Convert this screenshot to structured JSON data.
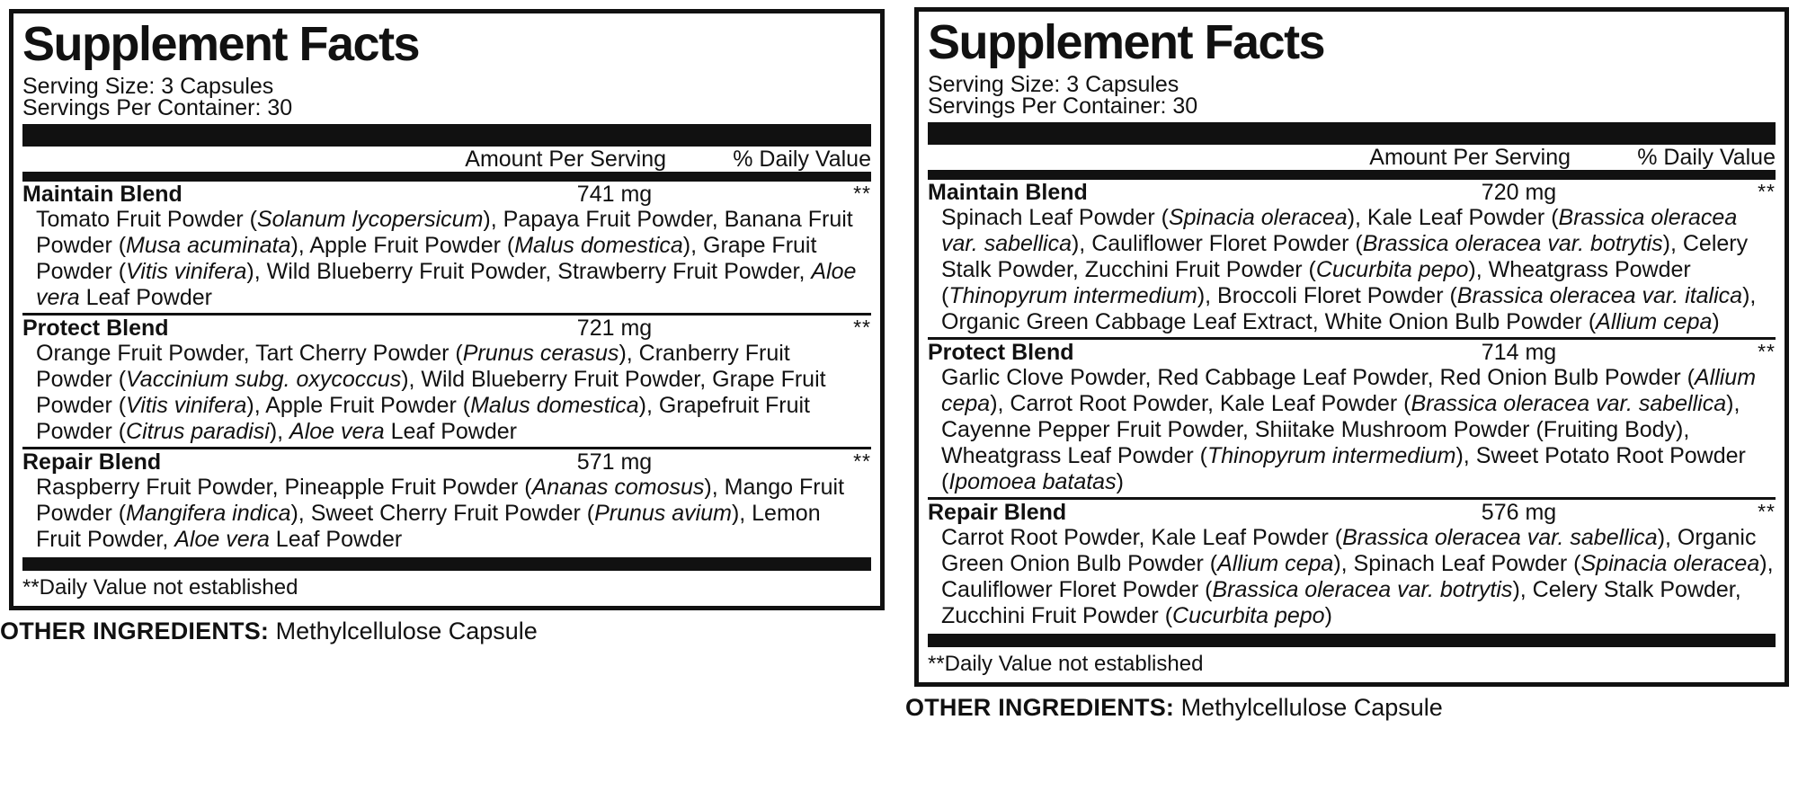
{
  "colors": {
    "ink": "#111111",
    "background": "#ffffff"
  },
  "panels": [
    {
      "title": "Supplement Facts",
      "serving_size": "Serving Size: 3 Capsules",
      "servings_per_container": "Servings Per Container: 30",
      "col_amount": "Amount Per Serving",
      "col_dv": "% Daily Value",
      "blends": [
        {
          "name": "Maintain Blend",
          "amount": "741 mg",
          "dv": "**",
          "ingredients": "Tomato Fruit Powder (_Solanum lycopersicum_), Papaya Fruit Powder, Banana Fruit Powder (_Musa acuminata_), Apple Fruit Powder (_Malus domestica_), Grape Fruit Powder (_Vitis vinifera_), Wild Blueberry Fruit Powder, Strawberry Fruit Powder, _Aloe vera_ Leaf Powder"
        },
        {
          "name": "Protect Blend",
          "amount": "721 mg",
          "dv": "**",
          "ingredients": "Orange Fruit Powder, Tart Cherry Powder (_Prunus cerasus_), Cranberry Fruit Powder (_Vaccinium subg. oxycoccus_), Wild Blueberry Fruit Powder, Grape Fruit Powder (_Vitis vinifera_), Apple Fruit Powder (_Malus domestica_), Grapefruit Fruit Powder (_Citrus paradisi_), _Aloe vera_ Leaf Powder"
        },
        {
          "name": "Repair Blend",
          "amount": "571 mg",
          "dv": "**",
          "ingredients": "Raspberry Fruit Powder, Pineapple Fruit Powder (_Ananas comosus_), Mango Fruit Powder (_Mangifera indica_), Sweet Cherry Fruit Powder (_Prunus avium_), Lemon Fruit Powder, _Aloe vera_ Leaf Powder"
        }
      ],
      "footnote": "**Daily Value not established",
      "other_ingredients_label": "OTHER INGREDIENTS:",
      "other_ingredients_value": "Methylcellulose Capsule"
    },
    {
      "title": "Supplement Facts",
      "serving_size": "Serving Size: 3 Capsules",
      "servings_per_container": "Servings Per Container: 30",
      "col_amount": "Amount Per Serving",
      "col_dv": "% Daily Value",
      "blends": [
        {
          "name": "Maintain Blend",
          "amount": "720 mg",
          "dv": "**",
          "ingredients": "Spinach Leaf Powder (_Spinacia oleracea_), Kale Leaf Powder (_Brassica oleracea var. sabellica_), Cauliflower Floret Powder (_Brassica oleracea var. botrytis_), Celery Stalk Powder, Zucchini Fruit Powder (_Cucurbita pepo_), Wheatgrass Powder (_Thinopyrum intermedium_), Broccoli Floret Powder (_Brassica oleracea var. italica_), Organic Green Cabbage Leaf Extract, White Onion Bulb Powder (_Allium cepa_)"
        },
        {
          "name": "Protect Blend",
          "amount": "714 mg",
          "dv": "**",
          "ingredients": "Garlic Clove Powder, Red Cabbage Leaf Powder, Red Onion Bulb Powder (_Allium cepa_), Carrot Root Powder, Kale Leaf Powder (_Brassica oleracea var. sabellica_), Cayenne Pepper Fruit Powder, Shiitake Mushroom Powder (Fruiting Body), Wheatgrass Leaf Powder (_Thinopyrum intermedium_), Sweet Potato Root Powder (_Ipomoea batatas_)"
        },
        {
          "name": "Repair Blend",
          "amount": "576 mg",
          "dv": "**",
          "ingredients": "Carrot Root Powder, Kale Leaf Powder (_Brassica oleracea var. sabellica_), Organic Green Onion Bulb Powder (_Allium cepa_), Spinach Leaf Powder (_Spinacia oleracea_), Cauliflower Floret Powder (_Brassica oleracea var. botrytis_), Celery Stalk Powder, Zucchini Fruit Powder (_Cucurbita pepo_)"
        }
      ],
      "footnote": "**Daily Value not established",
      "other_ingredients_label": "OTHER INGREDIENTS:",
      "other_ingredients_value": "Methylcellulose Capsule"
    }
  ]
}
